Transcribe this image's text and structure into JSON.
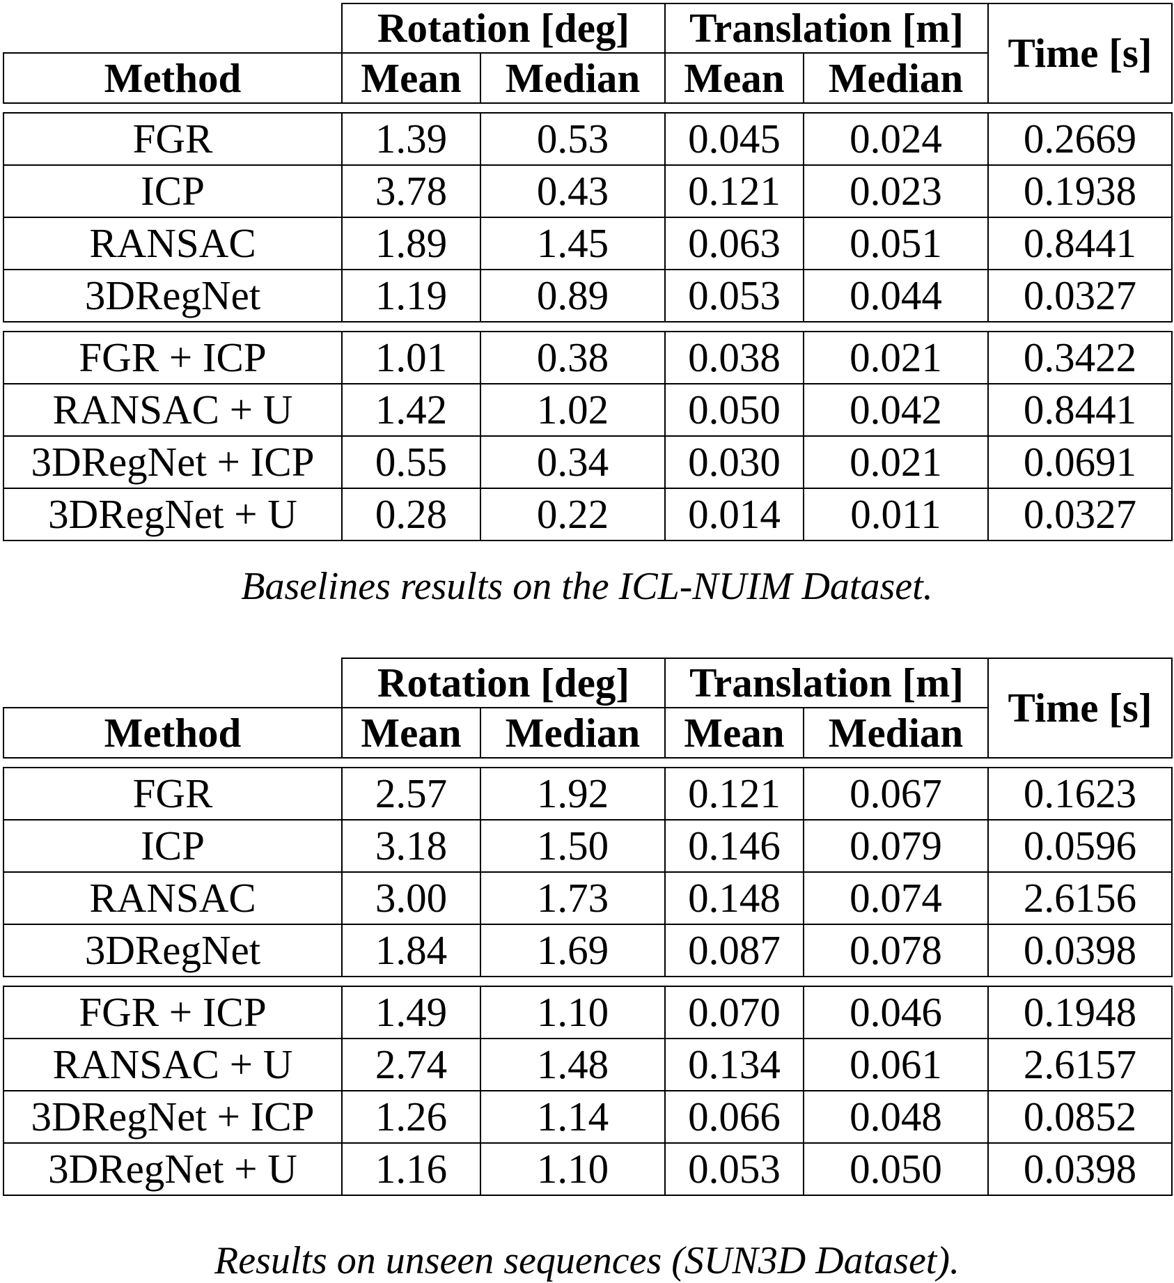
{
  "header": {
    "rotation": "Rotation [deg]",
    "translation": "Translation [m]",
    "time": "Time [s]",
    "method": "Method",
    "mean": "Mean",
    "median": "Median"
  },
  "tables": [
    {
      "caption": "Baselines results on the ICL-NUIM Dataset.",
      "groups": [
        [
          {
            "cells": [
              "FGR",
              "1.39",
              "0.53",
              "0.045",
              "0.024",
              "0.2669"
            ],
            "bold": [
              false,
              false,
              false,
              true,
              false,
              false
            ]
          },
          {
            "cells": [
              "ICP",
              "3.78",
              "0.43",
              "0.121",
              "0.023",
              "0.1938"
            ],
            "bold": [
              false,
              false,
              true,
              false,
              true,
              false
            ]
          },
          {
            "cells": [
              "RANSAC",
              "1.89",
              "1.45",
              "0.063",
              "0.051",
              "0.8441"
            ],
            "bold": [
              false,
              false,
              false,
              false,
              false,
              false
            ]
          },
          {
            "cells": [
              "3DRegNet",
              "1.19",
              "0.89",
              "0.053",
              "0.044",
              "0.0327"
            ],
            "bold": [
              true,
              true,
              false,
              false,
              false,
              true
            ]
          }
        ],
        [
          {
            "cells": [
              "FGR + ICP",
              "1.01",
              "0.38",
              "0.038",
              "0.021",
              "0.3422"
            ],
            "bold": [
              false,
              false,
              false,
              false,
              false,
              false
            ]
          },
          {
            "cells": [
              "RANSAC + U",
              "1.42",
              "1.02",
              "0.050",
              "0.042",
              "0.8441"
            ],
            "bold": [
              false,
              false,
              false,
              false,
              false,
              false
            ]
          },
          {
            "cells": [
              "3DRegNet + ICP",
              "0.55",
              "0.34",
              "0.030",
              "0.021",
              "0.0691"
            ],
            "bold": [
              true,
              false,
              false,
              false,
              false,
              false
            ]
          },
          {
            "cells": [
              "3DRegNet + U",
              "0.28",
              "0.22",
              "0.014",
              "0.011",
              "0.0327"
            ],
            "bold": [
              true,
              true,
              true,
              true,
              true,
              true
            ]
          }
        ]
      ]
    },
    {
      "caption": "Results on unseen sequences (SUN3D Dataset).",
      "groups": [
        [
          {
            "cells": [
              "FGR",
              "2.57",
              "1.92",
              "0.121",
              "0.067",
              "0.1623"
            ],
            "bold": [
              false,
              false,
              false,
              false,
              true,
              false
            ]
          },
          {
            "cells": [
              "ICP",
              "3.18",
              "1.50",
              "0.146",
              "0.079",
              "0.0596"
            ],
            "bold": [
              false,
              false,
              true,
              false,
              false,
              false
            ]
          },
          {
            "cells": [
              "RANSAC",
              "3.00",
              "1.73",
              "0.148",
              "0.074",
              "2.6156"
            ],
            "bold": [
              false,
              false,
              false,
              false,
              false,
              false
            ]
          },
          {
            "cells": [
              "3DRegNet",
              "1.84",
              "1.69",
              "0.087",
              "0.078",
              "0.0398"
            ],
            "bold": [
              true,
              true,
              false,
              true,
              false,
              true
            ]
          }
        ],
        [
          {
            "cells": [
              "FGR + ICP",
              "1.49",
              "1.10",
              "0.070",
              "0.046",
              "0.1948"
            ],
            "bold": [
              false,
              false,
              true,
              false,
              true,
              false
            ]
          },
          {
            "cells": [
              "RANSAC + U",
              "2.74",
              "1.48",
              "0.134",
              "0.061",
              "2.6157"
            ],
            "bold": [
              false,
              false,
              false,
              false,
              false,
              false
            ]
          },
          {
            "cells": [
              "3DRegNet + ICP",
              "1.26",
              "1.14",
              "0.066",
              "0.048",
              "0.0852"
            ],
            "bold": [
              true,
              false,
              false,
              false,
              false,
              false
            ]
          },
          {
            "cells": [
              "3DRegNet + U",
              "1.16",
              "1.10",
              "0.053",
              "0.050",
              "0.0398"
            ],
            "bold": [
              true,
              true,
              true,
              true,
              false,
              true
            ]
          }
        ]
      ]
    }
  ]
}
